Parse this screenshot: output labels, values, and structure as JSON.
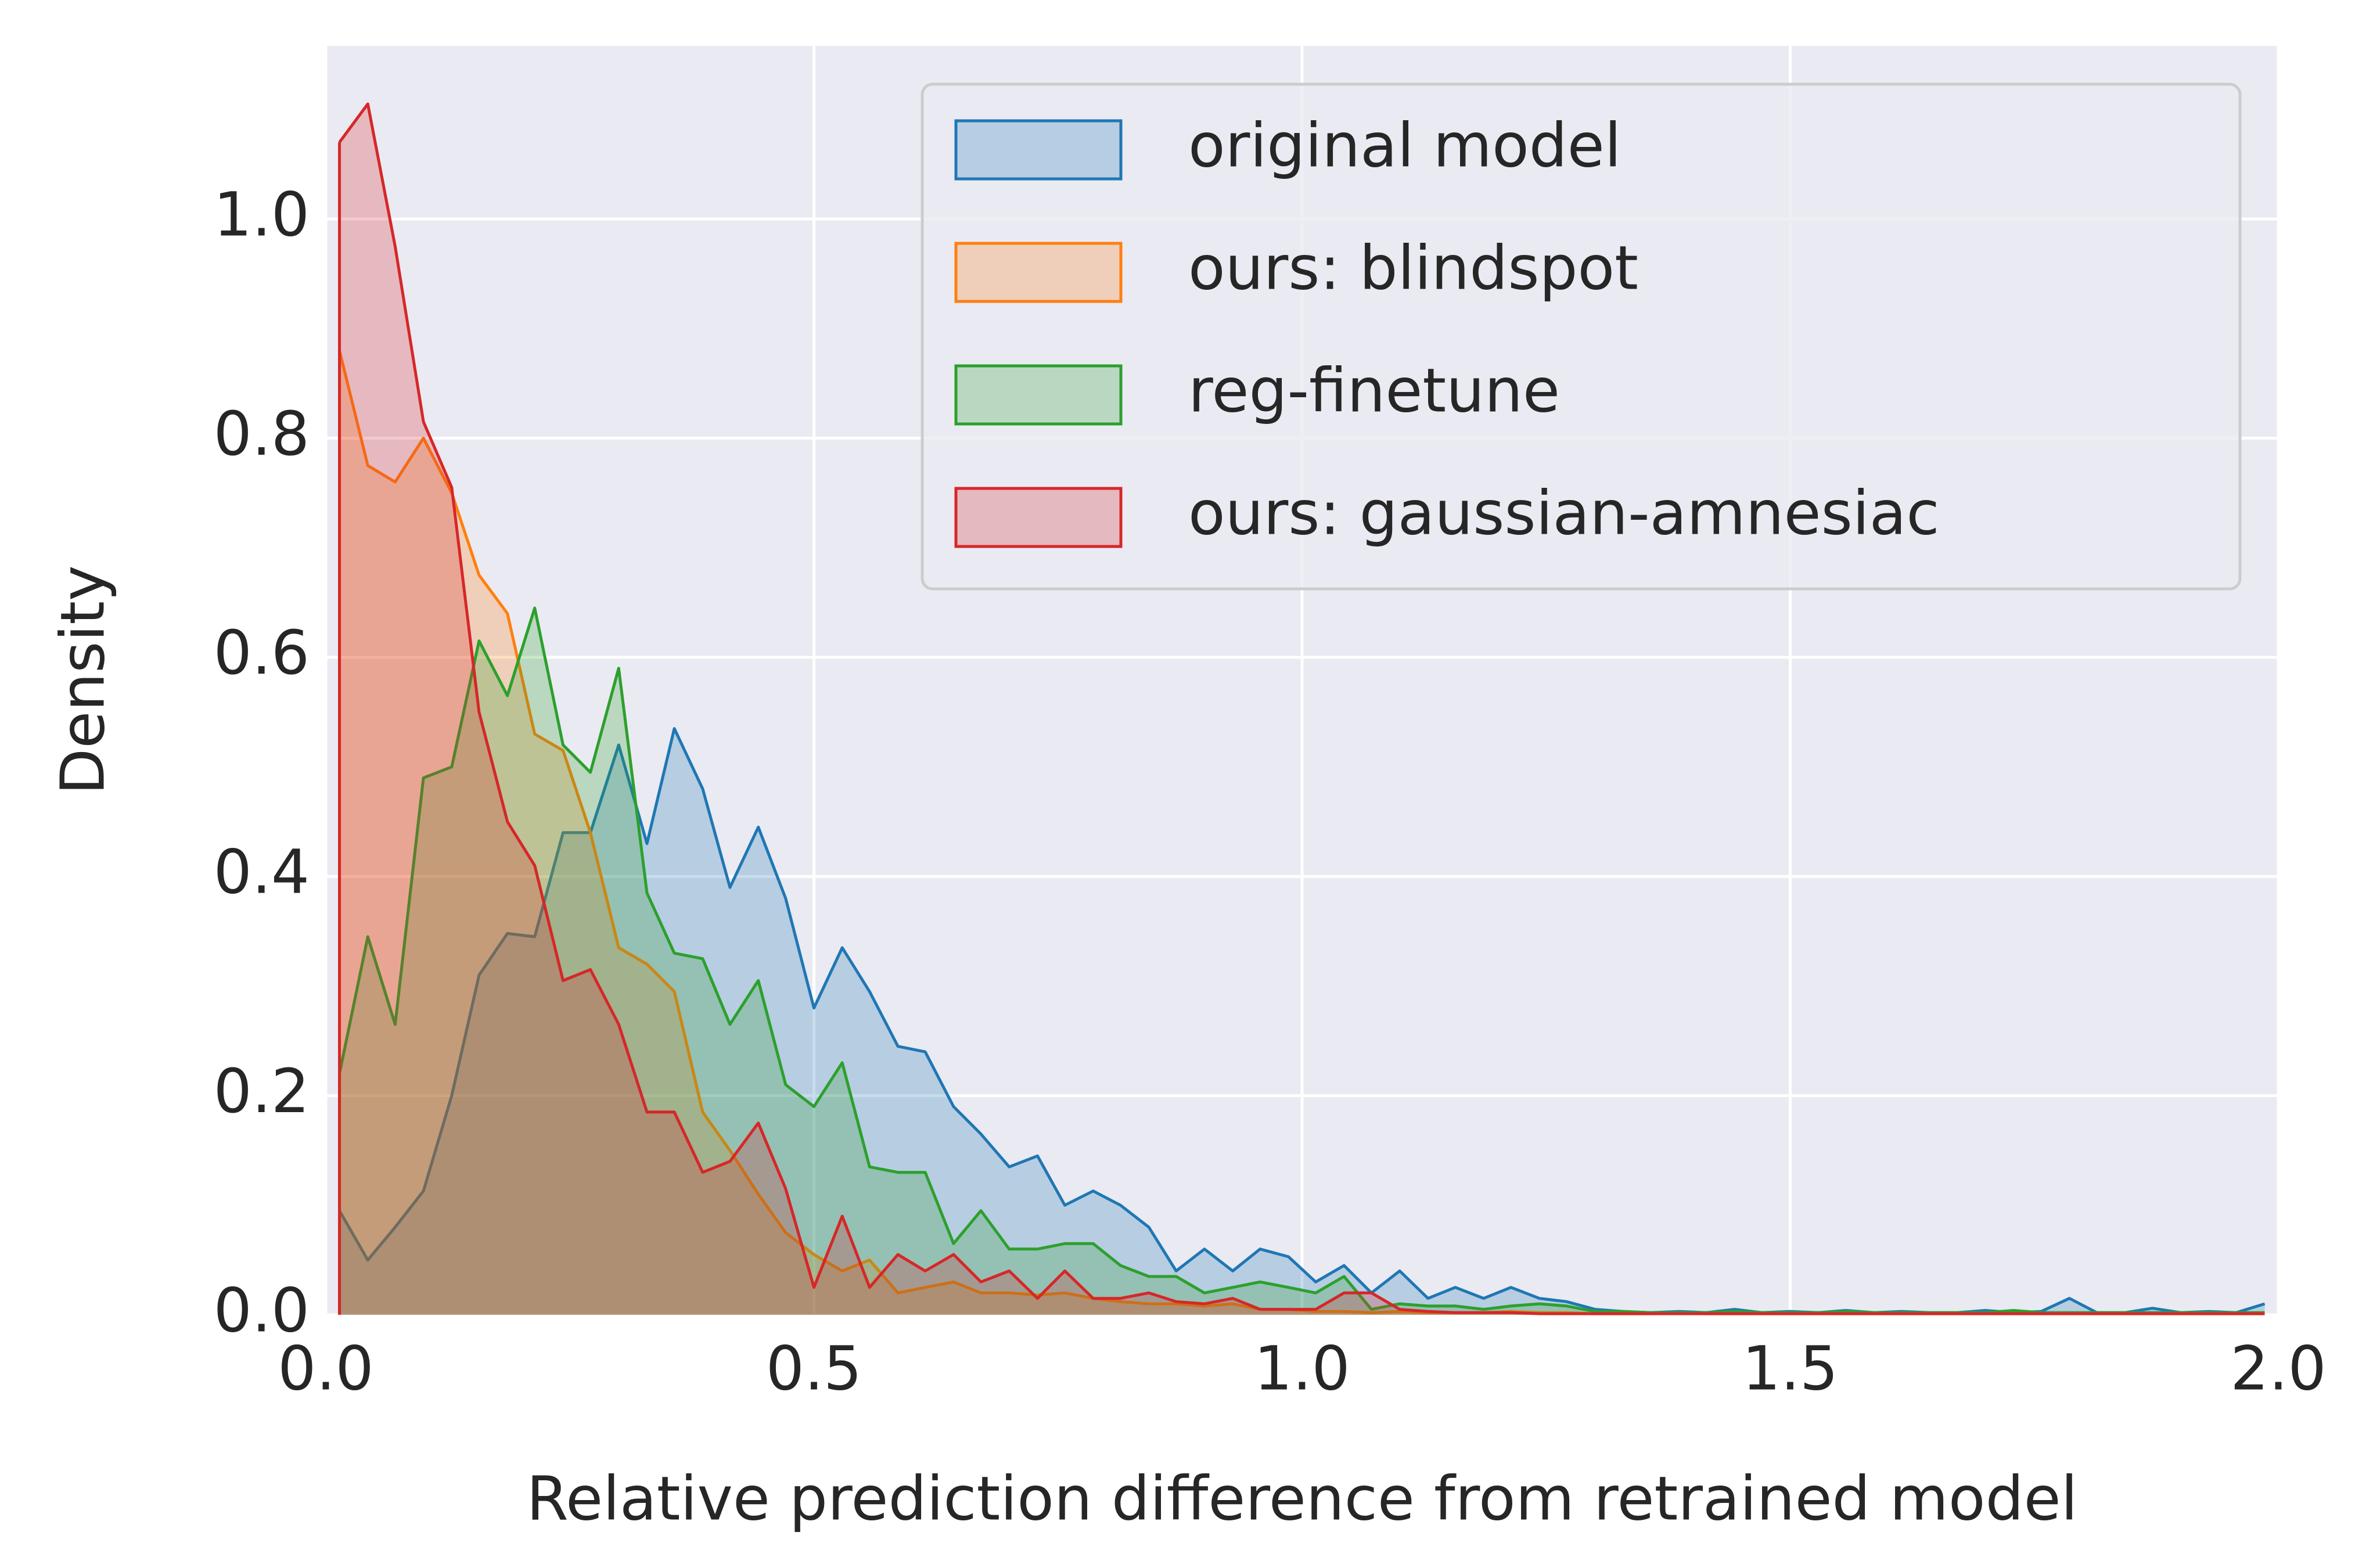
{
  "chart_data": {
    "type": "area",
    "xlabel": "Relative prediction difference from retrained model",
    "ylabel": "Density",
    "x": [
      0.014,
      0.043,
      0.071,
      0.1,
      0.129,
      0.157,
      0.186,
      0.214,
      0.243,
      0.271,
      0.3,
      0.329,
      0.357,
      0.386,
      0.414,
      0.443,
      0.471,
      0.5,
      0.529,
      0.557,
      0.586,
      0.614,
      0.643,
      0.671,
      0.7,
      0.729,
      0.757,
      0.786,
      0.814,
      0.843,
      0.871,
      0.9,
      0.929,
      0.957,
      0.986,
      1.014,
      1.043,
      1.071,
      1.1,
      1.129,
      1.157,
      1.186,
      1.214,
      1.243,
      1.271,
      1.3,
      1.329,
      1.357,
      1.386,
      1.414,
      1.443,
      1.471,
      1.5,
      1.529,
      1.557,
      1.586,
      1.614,
      1.643,
      1.671,
      1.7,
      1.729,
      1.757,
      1.786,
      1.814,
      1.843,
      1.871,
      1.9,
      1.929,
      1.957,
      1.986
    ],
    "series": [
      {
        "name": "original model",
        "color": "#1f77b4",
        "values": [
          0.095,
          0.05,
          0.08,
          0.113,
          0.2,
          0.31,
          0.348,
          0.345,
          0.44,
          0.44,
          0.52,
          0.43,
          0.535,
          0.48,
          0.39,
          0.445,
          0.38,
          0.28,
          0.335,
          0.295,
          0.245,
          0.24,
          0.19,
          0.165,
          0.135,
          0.145,
          0.1,
          0.113,
          0.1,
          0.08,
          0.04,
          0.06,
          0.04,
          0.06,
          0.053,
          0.03,
          0.045,
          0.02,
          0.04,
          0.015,
          0.025,
          0.015,
          0.025,
          0.015,
          0.012,
          0.005,
          0.003,
          0.002,
          0.003,
          0.002,
          0.005,
          0.002,
          0.003,
          0.002,
          0.004,
          0.002,
          0.003,
          0.002,
          0.002,
          0.004,
          0.002,
          0.003,
          0.015,
          0.002,
          0.002,
          0.006,
          0.002,
          0.003,
          0.002,
          0.01
        ]
      },
      {
        "name": "ours: blindspot",
        "color": "#ff7f0e",
        "values": [
          0.88,
          0.775,
          0.76,
          0.8,
          0.75,
          0.675,
          0.64,
          0.53,
          0.515,
          0.44,
          0.335,
          0.32,
          0.295,
          0.185,
          0.15,
          0.11,
          0.075,
          0.055,
          0.04,
          0.05,
          0.02,
          0.025,
          0.03,
          0.02,
          0.02,
          0.018,
          0.02,
          0.015,
          0.012,
          0.01,
          0.01,
          0.008,
          0.01,
          0.005,
          0.005,
          0.003,
          0.003,
          0.002,
          0.003,
          0.002,
          0.002,
          0.002,
          0.003,
          0.002,
          0.002,
          0.001,
          0.001,
          0.001,
          0.002,
          0.001,
          0.001,
          0.001,
          0.001,
          0.001,
          0.001,
          0.001,
          0.001,
          0.001,
          0.001,
          0.001,
          0.001,
          0.001,
          0.001,
          0.001,
          0.001,
          0.001,
          0.001,
          0.001,
          0.001,
          0.001
        ]
      },
      {
        "name": "reg-finetune",
        "color": "#2ca02c",
        "values": [
          0.22,
          0.345,
          0.265,
          0.49,
          0.5,
          0.615,
          0.565,
          0.645,
          0.52,
          0.495,
          0.59,
          0.385,
          0.33,
          0.325,
          0.265,
          0.305,
          0.21,
          0.19,
          0.23,
          0.135,
          0.13,
          0.13,
          0.065,
          0.095,
          0.06,
          0.06,
          0.065,
          0.065,
          0.045,
          0.035,
          0.035,
          0.02,
          0.025,
          0.03,
          0.025,
          0.02,
          0.035,
          0.005,
          0.01,
          0.008,
          0.008,
          0.005,
          0.008,
          0.01,
          0.008,
          0.003,
          0.003,
          0.002,
          0.002,
          0.002,
          0.003,
          0.002,
          0.002,
          0.002,
          0.003,
          0.002,
          0.002,
          0.002,
          0.002,
          0.002,
          0.004,
          0.002,
          0.002,
          0.002,
          0.002,
          0.002,
          0.002,
          0.002,
          0.002,
          0.002
        ]
      },
      {
        "name": "ours: gaussian-amnesiac",
        "color": "#d62728",
        "values": [
          1.07,
          1.105,
          0.975,
          0.815,
          0.755,
          0.55,
          0.45,
          0.41,
          0.305,
          0.315,
          0.265,
          0.185,
          0.185,
          0.13,
          0.14,
          0.175,
          0.115,
          0.025,
          0.09,
          0.025,
          0.055,
          0.04,
          0.055,
          0.03,
          0.04,
          0.015,
          0.04,
          0.015,
          0.015,
          0.02,
          0.012,
          0.01,
          0.015,
          0.005,
          0.005,
          0.005,
          0.02,
          0.02,
          0.005,
          0.003,
          0.002,
          0.002,
          0.002,
          0.001,
          0.001,
          0.001,
          0.001,
          0.001,
          0.001,
          0.001,
          0.001,
          0.001,
          0.001,
          0.001,
          0.001,
          0.001,
          0.001,
          0.001,
          0.001,
          0.001,
          0.001,
          0.001,
          0.001,
          0.001,
          0.001,
          0.001,
          0.001,
          0.001,
          0.001,
          0.001
        ]
      }
    ],
    "xlim": [
      0,
      2
    ],
    "ylim": [
      0,
      1.158
    ],
    "xticks": [
      {
        "value": 0,
        "label": "0.0"
      },
      0.5,
      {
        "value": 1,
        "label": "1.0"
      },
      1.5,
      {
        "value": 2,
        "label": "2.0"
      }
    ],
    "yticks": [
      {
        "value": 0,
        "label": "0.0"
      },
      0.2,
      0.4,
      0.6,
      0.8,
      {
        "value": 1,
        "label": "1.0"
      }
    ],
    "grid": true,
    "legend": "upper right",
    "fill_opacity": 0.25
  }
}
